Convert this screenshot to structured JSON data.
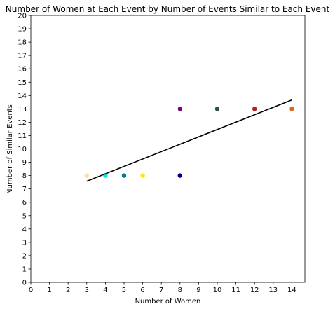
{
  "chart_data": {
    "type": "scatter",
    "title": "Number of Women at Each Event by Number of Events Similar to Each Event",
    "xlabel": "Number of Women",
    "ylabel": "Number of Similar Events",
    "xlim": [
      0,
      14.7
    ],
    "ylim": [
      0,
      20
    ],
    "xticks": [
      0,
      1,
      2,
      3,
      4,
      5,
      6,
      7,
      8,
      9,
      10,
      11,
      12,
      13,
      14
    ],
    "yticks": [
      0,
      1,
      2,
      3,
      4,
      5,
      6,
      7,
      8,
      9,
      10,
      11,
      12,
      13,
      14,
      15,
      16,
      17,
      18,
      19,
      20
    ],
    "grid": false,
    "legend": "none",
    "points": [
      {
        "x": 3,
        "y": 8,
        "color": "#ffdead"
      },
      {
        "x": 4,
        "y": 8,
        "color": "#00e5e5"
      },
      {
        "x": 5,
        "y": 8,
        "color": "#008080"
      },
      {
        "x": 6,
        "y": 8,
        "color": "#ffea00"
      },
      {
        "x": 8,
        "y": 8,
        "color": "#00008b"
      },
      {
        "x": 8,
        "y": 13,
        "color": "#800080"
      },
      {
        "x": 10,
        "y": 13,
        "color": "#2f4f4f"
      },
      {
        "x": 12,
        "y": 13,
        "color": "#b22222"
      },
      {
        "x": 14,
        "y": 13,
        "color": "#d2691e"
      }
    ],
    "trend_line": {
      "x": [
        3,
        14
      ],
      "y": [
        7.58,
        13.67
      ],
      "color": "#000000"
    }
  }
}
